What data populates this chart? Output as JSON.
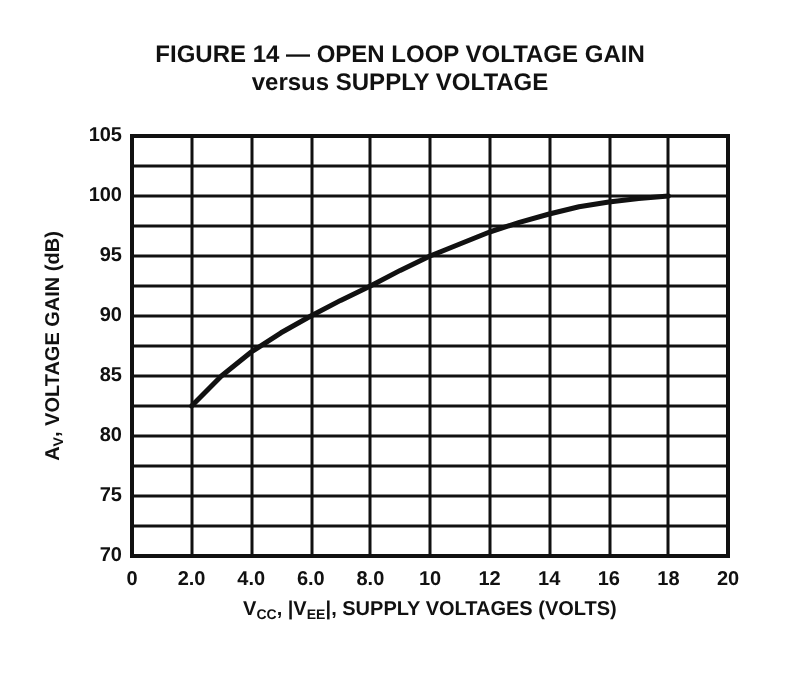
{
  "chart_data": {
    "type": "line",
    "title": "FIGURE 14 — OPEN LOOP VOLTAGE GAIN",
    "subtitle": "versus SUPPLY VOLTAGE",
    "xlabel": "V$_{CC}$, |V$_{EE}$|, SUPPLY VOLTAGES (VOLTS)",
    "ylabel": "A$_{V}$, VOLTAGE GAIN (dB)",
    "x": [
      2,
      3,
      4,
      5,
      6,
      7,
      8,
      9,
      10,
      11,
      12,
      13,
      14,
      15,
      16,
      17,
      18
    ],
    "series": [
      {
        "color": "#111111",
        "values": [
          82.5,
          85,
          87,
          88.6,
          90,
          91.3,
          92.5,
          93.8,
          95,
          96,
          97,
          97.8,
          98.5,
          99.1,
          99.5,
          99.8,
          100
        ]
      }
    ],
    "xlim": [
      0,
      20
    ],
    "xticks": [
      0,
      {
        "value": 2,
        "label": "2.0"
      },
      {
        "value": 4,
        "label": "4.0"
      },
      {
        "value": 6,
        "label": "6.0"
      },
      {
        "value": 8,
        "label": "8.0"
      },
      10,
      12,
      14,
      16,
      18,
      20
    ],
    "ylim": [
      70,
      105
    ],
    "yticks": [
      70,
      {
        "value": 72.5,
        "label": null
      },
      75,
      {
        "value": 77.5,
        "label": null
      },
      80,
      {
        "value": 82.5,
        "label": null
      },
      85,
      {
        "value": 87.5,
        "label": null
      },
      90,
      {
        "value": 92.5,
        "label": null
      },
      95,
      {
        "value": 97.5,
        "label": null
      },
      100,
      {
        "value": 102.5,
        "label": null
      },
      105
    ],
    "grid": true,
    "marker": "none",
    "line_style": "solid"
  }
}
